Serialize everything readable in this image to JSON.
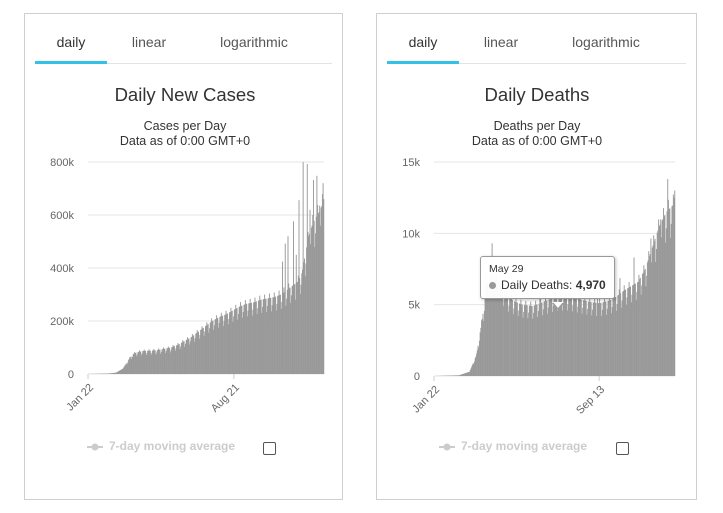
{
  "panels": [
    {
      "tabs": [
        "daily",
        "linear",
        "logarithmic"
      ],
      "active_tab": 0,
      "legend_label": "7-day moving average",
      "chart_data": {
        "type": "bar",
        "title": "Daily New Cases",
        "subtitle": "Cases per Day",
        "subtitle2": "Data as of 0:00 GMT+0",
        "ylim": [
          0,
          800000
        ],
        "yticks": [
          0,
          200000,
          400000,
          600000,
          800000
        ],
        "ytick_labels": [
          "0",
          "200k",
          "400k",
          "600k",
          "800k"
        ],
        "xtick_labels": [
          "Jan 22",
          "Aug 21"
        ],
        "xtick_days": [
          0,
          212
        ],
        "start_date": "Jan 22",
        "n_days": 343,
        "anchors": [
          [
            0,
            0
          ],
          [
            30,
            2000
          ],
          [
            40,
            5000
          ],
          [
            50,
            20000
          ],
          [
            55,
            40000
          ],
          [
            60,
            60000
          ],
          [
            65,
            75000
          ],
          [
            70,
            82000
          ],
          [
            80,
            87000
          ],
          [
            90,
            88000
          ],
          [
            100,
            90000
          ],
          [
            110,
            95000
          ],
          [
            120,
            100000
          ],
          [
            130,
            110000
          ],
          [
            140,
            125000
          ],
          [
            150,
            140000
          ],
          [
            160,
            160000
          ],
          [
            170,
            180000
          ],
          [
            180,
            200000
          ],
          [
            190,
            215000
          ],
          [
            200,
            225000
          ],
          [
            210,
            240000
          ],
          [
            220,
            255000
          ],
          [
            230,
            265000
          ],
          [
            240,
            270000
          ],
          [
            250,
            280000
          ],
          [
            260,
            285000
          ],
          [
            270,
            290000
          ],
          [
            280,
            300000
          ],
          [
            290,
            320000
          ],
          [
            300,
            340000
          ],
          [
            305,
            350000
          ],
          [
            310,
            380000
          ],
          [
            315,
            450000
          ],
          [
            320,
            520000
          ],
          [
            325,
            560000
          ],
          [
            330,
            590000
          ],
          [
            335,
            610000
          ],
          [
            340,
            640000
          ],
          [
            342,
            660000
          ]
        ],
        "spikes": [
          [
            282,
            120000
          ],
          [
            286,
            180000
          ],
          [
            290,
            200000
          ],
          [
            298,
            220000
          ],
          [
            302,
            140000
          ],
          [
            306,
            300000
          ],
          [
            312,
            400000
          ],
          [
            318,
            300000
          ],
          [
            322,
            180000
          ],
          [
            327,
            160000
          ],
          [
            332,
            150000
          ],
          [
            336,
            130000
          ],
          [
            341,
            70000
          ]
        ],
        "bar_color": "#999999",
        "grid": true
      }
    },
    {
      "tabs": [
        "daily",
        "linear",
        "logarithmic"
      ],
      "active_tab": 0,
      "legend_label": "7-day moving average",
      "tooltip": {
        "date": "May 29",
        "label": "Daily Deaths",
        "value": "4,970",
        "day": 128
      },
      "chart_data": {
        "type": "bar",
        "title": "Daily Deaths",
        "subtitle": "Deaths per Day",
        "subtitle2": "Data as of 0:00 GMT+0",
        "ylim": [
          0,
          15000
        ],
        "yticks": [
          0,
          5000,
          10000,
          15000
        ],
        "ytick_labels": [
          "0",
          "5k",
          "10k",
          "15k"
        ],
        "xtick_labels": [
          "Jan 22",
          "Sep 13"
        ],
        "xtick_days": [
          0,
          235
        ],
        "start_date": "Jan 22",
        "n_days": 343,
        "anchors": [
          [
            0,
            0
          ],
          [
            35,
            50
          ],
          [
            50,
            300
          ],
          [
            60,
            1500
          ],
          [
            68,
            4000
          ],
          [
            75,
            6500
          ],
          [
            82,
            7500
          ],
          [
            88,
            7000
          ],
          [
            95,
            6200
          ],
          [
            105,
            5500
          ],
          [
            115,
            5200
          ],
          [
            125,
            5000
          ],
          [
            140,
            4900
          ],
          [
            160,
            5300
          ],
          [
            175,
            5600
          ],
          [
            190,
            5600
          ],
          [
            205,
            5400
          ],
          [
            220,
            5200
          ],
          [
            235,
            5100
          ],
          [
            250,
            5300
          ],
          [
            260,
            5600
          ],
          [
            270,
            6000
          ],
          [
            280,
            6300
          ],
          [
            290,
            6600
          ],
          [
            300,
            7500
          ],
          [
            310,
            9000
          ],
          [
            320,
            10500
          ],
          [
            330,
            11500
          ],
          [
            340,
            12000
          ],
          [
            342,
            13000
          ]
        ],
        "spikes": [
          [
            72,
            1500
          ],
          [
            82,
            1800
          ],
          [
            92,
            1500
          ],
          [
            100,
            1200
          ],
          [
            110,
            1000
          ],
          [
            150,
            900
          ],
          [
            180,
            900
          ],
          [
            206,
            1000
          ],
          [
            232,
            800
          ],
          [
            264,
            1100
          ],
          [
            284,
            1500
          ],
          [
            308,
            2500
          ],
          [
            322,
            2200
          ],
          [
            332,
            2200
          ]
        ],
        "bar_color": "#999999",
        "grid": true
      }
    }
  ]
}
